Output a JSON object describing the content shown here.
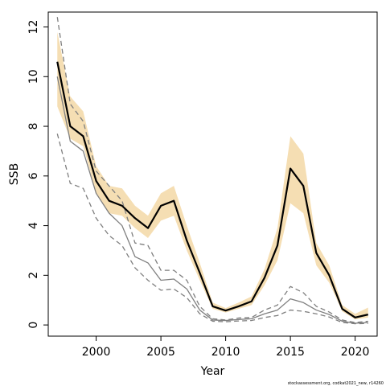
{
  "chart_data": {
    "type": "line",
    "xlabel": "Year",
    "ylabel": "SSB",
    "xlim": [
      1996.3,
      2021.7
    ],
    "ylim": [
      -0.45,
      12.6
    ],
    "x_ticks": [
      2000,
      2005,
      2010,
      2015,
      2020
    ],
    "y_ticks": [
      0,
      2,
      4,
      6,
      8,
      10,
      12
    ],
    "grid": false,
    "legend": "none",
    "footer": "stockassessment.org, codkat2021_new, r14260",
    "colors": {
      "band": "#f5deb3",
      "main_line": "#000000",
      "secondary_line": "#7f7f7f"
    },
    "x": [
      1997,
      1998,
      1999,
      2000,
      2001,
      2002,
      2003,
      2004,
      2005,
      2006,
      2007,
      2008,
      2009,
      2010,
      2011,
      2012,
      2013,
      2014,
      2015,
      2016,
      2017,
      2018,
      2019,
      2020,
      2021
    ],
    "series": [
      {
        "role": "estimate",
        "style": "solid-black",
        "values": [
          10.6,
          8.0,
          7.6,
          5.8,
          5.0,
          4.8,
          4.3,
          3.9,
          4.8,
          5.0,
          3.4,
          2.1,
          0.75,
          0.58,
          0.75,
          0.95,
          1.9,
          3.2,
          6.3,
          5.6,
          2.9,
          2.0,
          0.65,
          0.3,
          0.42
        ]
      },
      {
        "role": "confidence-band",
        "style": "filled-tan",
        "lower": [
          8.8,
          7.5,
          7.2,
          5.3,
          4.5,
          4.4,
          3.9,
          3.5,
          4.2,
          4.4,
          3.0,
          1.8,
          0.65,
          0.5,
          0.65,
          0.8,
          1.6,
          2.6,
          4.9,
          4.5,
          2.4,
          1.7,
          0.55,
          0.22,
          0.3
        ],
        "upper": [
          11.8,
          9.2,
          8.6,
          6.4,
          5.6,
          5.5,
          4.8,
          4.4,
          5.3,
          5.6,
          4.0,
          2.5,
          0.9,
          0.68,
          0.9,
          1.15,
          2.25,
          3.9,
          7.6,
          6.9,
          3.3,
          2.4,
          0.8,
          0.45,
          0.7
        ]
      },
      {
        "role": "secondary-estimate",
        "style": "solid-grey",
        "values": [
          10.0,
          7.4,
          7.0,
          5.3,
          4.5,
          4.0,
          2.75,
          2.5,
          1.8,
          1.85,
          1.45,
          0.6,
          0.2,
          0.18,
          0.22,
          0.25,
          0.45,
          0.6,
          1.05,
          0.9,
          0.6,
          0.42,
          0.15,
          0.07,
          0.1
        ]
      },
      {
        "role": "secondary-upper",
        "style": "dashed-grey",
        "values": [
          12.4,
          8.9,
          8.2,
          6.2,
          5.6,
          5.0,
          3.3,
          3.2,
          2.2,
          2.2,
          1.8,
          0.75,
          0.25,
          0.2,
          0.28,
          0.3,
          0.6,
          0.8,
          1.55,
          1.3,
          0.75,
          0.52,
          0.2,
          0.1,
          0.15
        ]
      },
      {
        "role": "secondary-lower",
        "style": "dashed-grey",
        "values": [
          7.7,
          5.7,
          5.5,
          4.3,
          3.6,
          3.2,
          2.3,
          1.8,
          1.4,
          1.45,
          1.1,
          0.45,
          0.15,
          0.13,
          0.16,
          0.18,
          0.3,
          0.38,
          0.6,
          0.55,
          0.45,
          0.32,
          0.1,
          0.05,
          0.06
        ]
      }
    ]
  }
}
